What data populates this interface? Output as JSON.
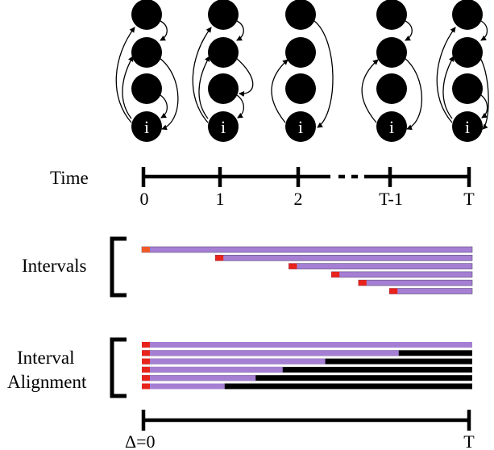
{
  "node_input_label": "i",
  "time_label": "Time",
  "time_ticks": [
    "0",
    "1",
    "2",
    "T-1",
    "T"
  ],
  "intervals_label": "Intervals",
  "interval_alignment_label_line1": "Interval",
  "interval_alignment_label_line2": "Alignment",
  "delta_label": "Δ=0",
  "delta_end_label": "T",
  "colors": {
    "node": "#000000",
    "interval_bar": "#a57fd3",
    "interval_start": "#e8231c",
    "interval_first_start": "#f05a28",
    "padding": "#000000"
  },
  "intervals": [
    {
      "start_step": 0.0
    },
    {
      "start_step": 0.95
    },
    {
      "start_step": 1.9
    },
    {
      "start_step": 2.45
    },
    {
      "start_step": 2.8
    },
    {
      "start_step": 3.2
    }
  ]
}
